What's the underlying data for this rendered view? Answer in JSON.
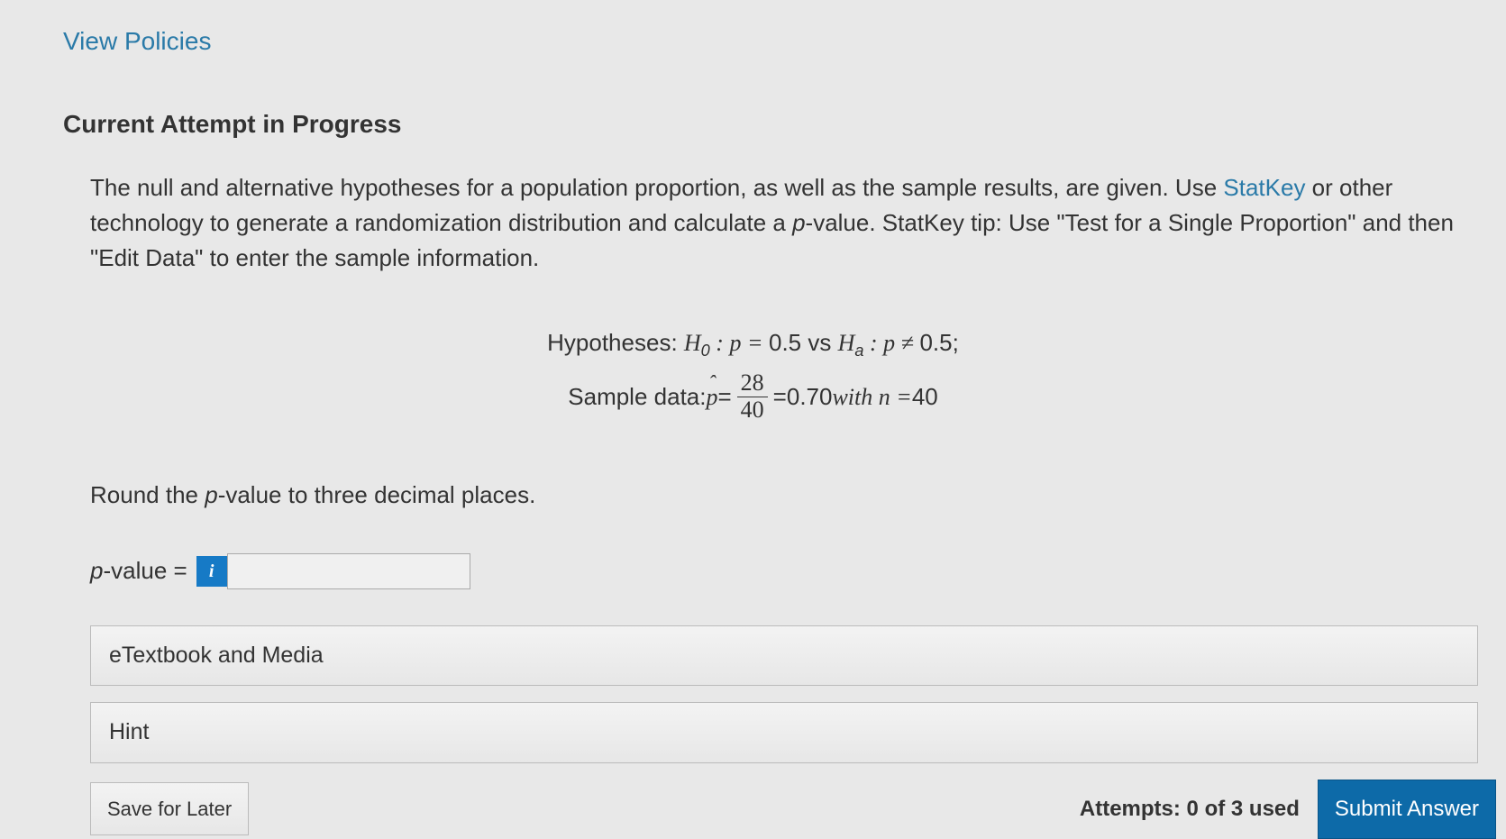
{
  "header": {
    "view_policies": "View Policies",
    "attempt_label": "Current Attempt in Progress"
  },
  "question": {
    "intro_pre": "The null and alternative hypotheses for a population proportion, as well as the sample results, are given. Use ",
    "statkey_link": "StatKey",
    "intro_mid": " or other technology to generate a randomization distribution and calculate a ",
    "pvalue_word": "p",
    "intro_mid2": "-value. StatKey tip: Use \"Test for a Single Proportion\" and then \"Edit Data\" to enter the sample information.",
    "hypotheses": {
      "label": "Hypotheses: ",
      "h0_sym": "H",
      "h0_sub": "0",
      "colon_p_eq": " : p = ",
      "null_value": "0.5",
      "vs": " vs ",
      "ha_sym": "H",
      "ha_sub": "a",
      "colon_p_neq": " : p ≠ ",
      "alt_value": "0.5",
      "semicolon": ";",
      "sample_label": "Sample data: ",
      "phat": "p",
      "eq": " = ",
      "frac_num": "28",
      "frac_den": "40",
      "eq2": " = ",
      "phat_value": "0.70",
      "with_n": " with n = ",
      "n_value": "40"
    },
    "round_instruction_pre": "Round the ",
    "round_instruction_p": "p",
    "round_instruction_post": "-value to three decimal places.",
    "answer_label_p": "p",
    "answer_label_post": "-value = ",
    "info_icon": "i",
    "answer_value": ""
  },
  "expanders": {
    "etextbook": "eTextbook and Media",
    "hint": "Hint"
  },
  "footer": {
    "save_later": "Save for Later",
    "attempts": "Attempts: 0 of 3 used",
    "submit": "Submit Answer"
  },
  "colors": {
    "link": "#2a7aa8",
    "info_bg": "#167ac6",
    "submit_bg": "#0d6aa8",
    "page_bg": "#e8e8e8"
  }
}
